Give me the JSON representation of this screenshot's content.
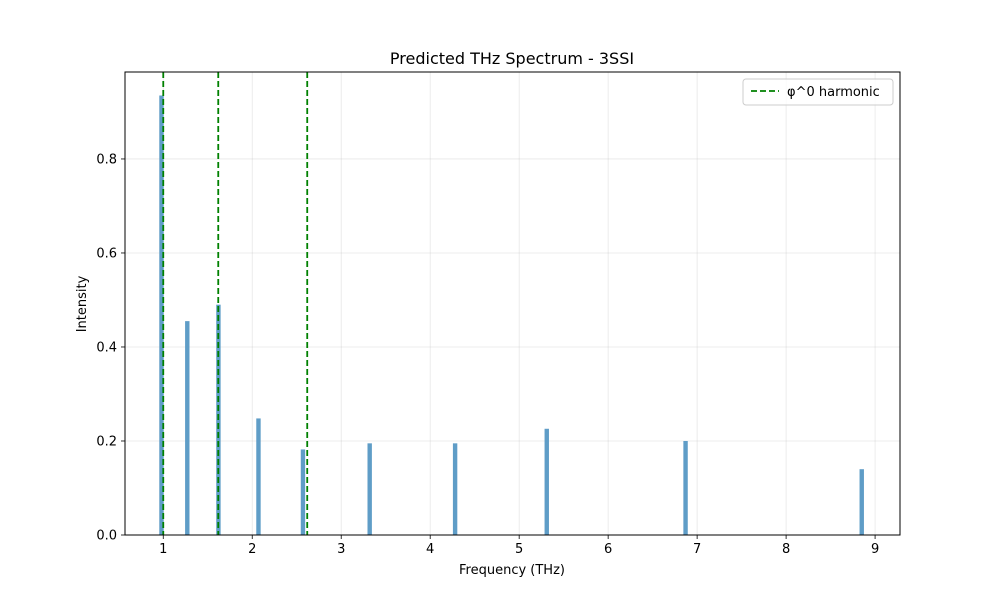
{
  "chart_data": {
    "type": "bar",
    "title": "Predicted THz Spectrum - 3SSI",
    "xlabel": "Frequency (THz)",
    "ylabel": "Intensity",
    "xlim": [
      0.57,
      9.28
    ],
    "ylim": [
      0.0,
      0.985
    ],
    "xticks": [
      1,
      2,
      3,
      4,
      5,
      6,
      7,
      8,
      9
    ],
    "yticks": [
      0.0,
      0.2,
      0.4,
      0.6,
      0.8
    ],
    "ytick_labels": [
      "0.0",
      "0.2",
      "0.4",
      "0.6",
      "0.8"
    ],
    "grid": true,
    "bar_color": "#5f9dc7",
    "bars": [
      {
        "x": 0.98,
        "y": 0.935
      },
      {
        "x": 1.27,
        "y": 0.455
      },
      {
        "x": 1.62,
        "y": 0.49
      },
      {
        "x": 2.07,
        "y": 0.248
      },
      {
        "x": 2.57,
        "y": 0.182
      },
      {
        "x": 3.32,
        "y": 0.195
      },
      {
        "x": 4.28,
        "y": 0.195
      },
      {
        "x": 5.31,
        "y": 0.226
      },
      {
        "x": 6.87,
        "y": 0.2
      },
      {
        "x": 8.85,
        "y": 0.14
      }
    ],
    "reference_lines": {
      "label": "φ^0 harmonic",
      "color": "#008000",
      "style": "dashed",
      "x": [
        1.0,
        1.618,
        2.618
      ]
    },
    "legend": {
      "position": "top-right",
      "entries": [
        {
          "label": "φ^0 harmonic",
          "color": "#008000",
          "style": "dashed"
        }
      ]
    }
  }
}
